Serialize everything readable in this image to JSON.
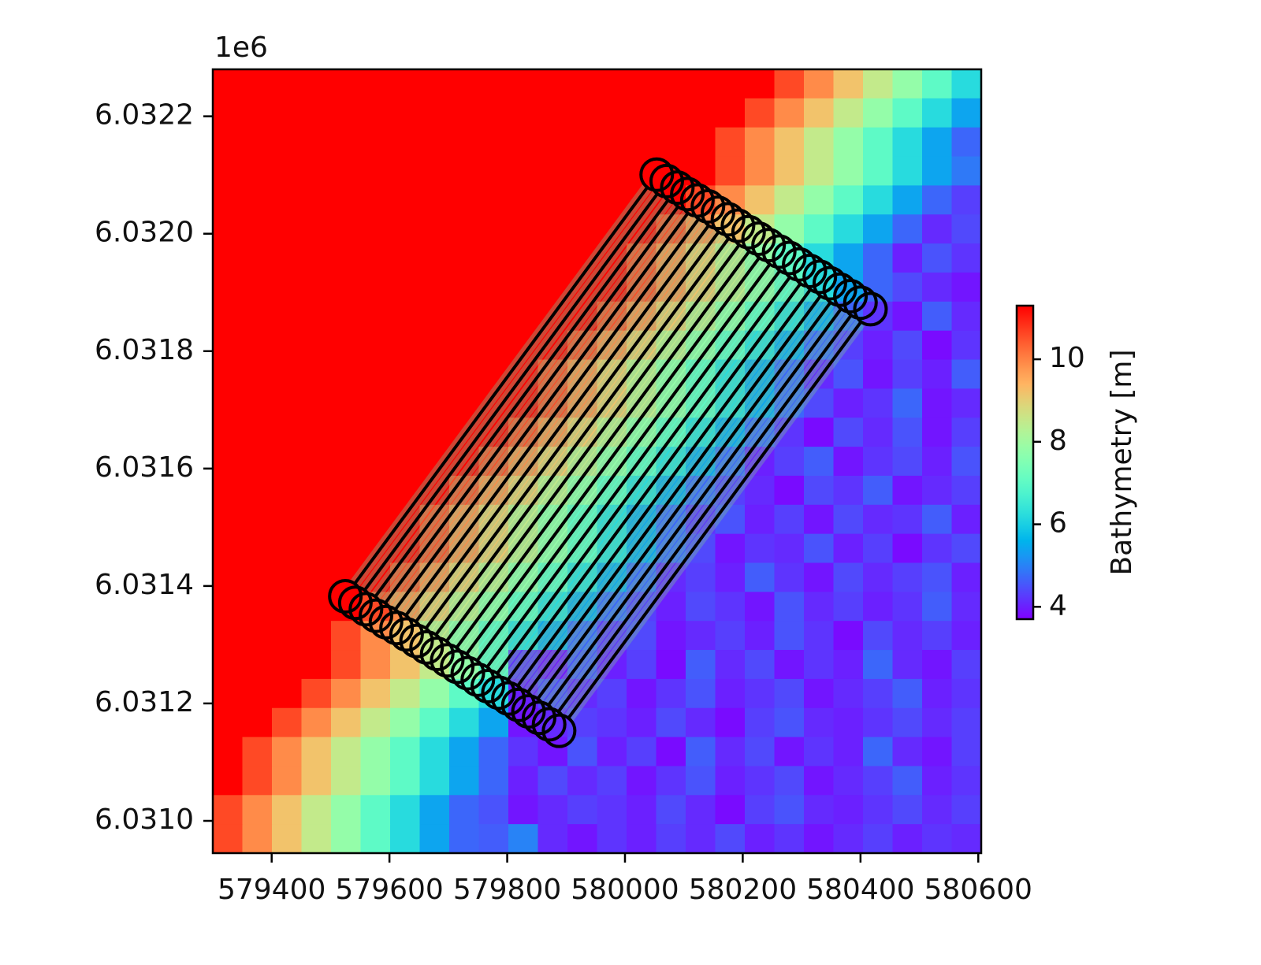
{
  "chart_data": {
    "type": "heatmap",
    "y_offset_label": "1e6",
    "colorbar_label": "Bathymetry [m]",
    "colormap": "rainbow",
    "clim": [
      3.7,
      11.3
    ],
    "cticks": [
      4,
      6,
      8,
      10
    ],
    "xlim": [
      579300,
      580605
    ],
    "ylim": [
      6030945,
      6032280
    ],
    "xticks": [
      579400,
      579600,
      579800,
      580000,
      580200,
      580400,
      580600
    ],
    "yticks": [
      {
        "value": 6031000,
        "label": "6.0310"
      },
      {
        "value": 6031200,
        "label": "6.0312"
      },
      {
        "value": 6031400,
        "label": "6.0314"
      },
      {
        "value": 6031600,
        "label": "6.0316"
      },
      {
        "value": 6031800,
        "label": "6.0318"
      },
      {
        "value": 6032000,
        "label": "6.0320"
      },
      {
        "value": 6032200,
        "label": "6.0322"
      }
    ],
    "z": [
      [
        11.3,
        11.3,
        11.3,
        11.3,
        11.3,
        11.3,
        11.3,
        11.3,
        11.3,
        11.3,
        11.3,
        11.3,
        11.3,
        11.3,
        11.3,
        11.3,
        11.3,
        11.3,
        11.3,
        10.6,
        9.9,
        9.2,
        8.5,
        7.8,
        7.0,
        6.2
      ],
      [
        11.3,
        11.3,
        11.3,
        11.3,
        11.3,
        11.3,
        11.3,
        11.3,
        11.3,
        11.3,
        11.3,
        11.3,
        11.3,
        11.3,
        11.3,
        11.3,
        11.3,
        11.3,
        10.6,
        9.9,
        9.2,
        8.5,
        7.8,
        7.0,
        6.2,
        5.4
      ],
      [
        11.3,
        11.3,
        11.3,
        11.3,
        11.3,
        11.3,
        11.3,
        11.3,
        11.3,
        11.3,
        11.3,
        11.3,
        11.3,
        11.3,
        11.3,
        11.3,
        11.3,
        10.6,
        9.9,
        9.2,
        8.5,
        7.8,
        7.0,
        6.2,
        5.4,
        4.7
      ],
      [
        11.3,
        11.3,
        11.3,
        11.3,
        11.3,
        11.3,
        11.3,
        11.3,
        11.3,
        11.3,
        11.3,
        11.3,
        11.3,
        11.3,
        11.3,
        11.3,
        11.3,
        10.6,
        9.9,
        9.2,
        8.5,
        7.8,
        7.0,
        6.2,
        5.4,
        4.9
      ],
      [
        11.3,
        11.3,
        11.3,
        11.3,
        11.3,
        11.3,
        11.3,
        11.3,
        11.3,
        11.3,
        11.3,
        11.3,
        11.3,
        11.3,
        11.3,
        11.3,
        10.6,
        9.9,
        9.2,
        8.5,
        7.8,
        7.0,
        6.2,
        5.4,
        4.7,
        4.3
      ],
      [
        11.3,
        11.3,
        11.3,
        11.3,
        11.3,
        11.3,
        11.3,
        11.3,
        11.3,
        11.3,
        11.3,
        11.3,
        11.3,
        11.3,
        11.3,
        10.6,
        9.9,
        9.2,
        8.5,
        7.8,
        7.0,
        6.2,
        5.4,
        4.7,
        4.1,
        4.4
      ],
      [
        11.3,
        11.3,
        11.3,
        11.3,
        11.3,
        11.3,
        11.3,
        11.3,
        11.3,
        11.3,
        11.3,
        11.3,
        11.3,
        11.3,
        10.6,
        9.9,
        9.2,
        8.5,
        7.8,
        7.0,
        6.2,
        5.4,
        4.7,
        4.0,
        4.5,
        4.2
      ],
      [
        11.3,
        11.3,
        11.3,
        11.3,
        11.3,
        11.3,
        11.3,
        11.3,
        11.3,
        11.3,
        11.3,
        11.3,
        11.3,
        11.3,
        10.6,
        9.9,
        9.2,
        8.5,
        7.8,
        7.0,
        6.2,
        5.4,
        4.7,
        4.4,
        4.1,
        3.9
      ],
      [
        11.3,
        11.3,
        11.3,
        11.3,
        11.3,
        11.3,
        11.3,
        11.3,
        11.3,
        11.3,
        11.3,
        11.3,
        11.3,
        10.6,
        9.9,
        9.2,
        8.5,
        7.8,
        7.0,
        6.2,
        5.4,
        4.7,
        4.2,
        3.9,
        4.6,
        4.1
      ],
      [
        11.3,
        11.3,
        11.3,
        11.3,
        11.3,
        11.3,
        11.3,
        11.3,
        11.3,
        11.3,
        11.3,
        11.3,
        10.6,
        9.9,
        9.2,
        8.5,
        7.8,
        7.0,
        6.2,
        5.4,
        4.7,
        4.3,
        4.0,
        4.4,
        3.8,
        4.2
      ],
      [
        11.3,
        11.3,
        11.3,
        11.3,
        11.3,
        11.3,
        11.3,
        11.3,
        11.3,
        11.3,
        11.3,
        10.6,
        9.9,
        9.2,
        8.5,
        7.8,
        7.0,
        6.2,
        5.4,
        4.7,
        4.1,
        4.5,
        3.9,
        4.3,
        4.0,
        4.6
      ],
      [
        11.3,
        11.3,
        11.3,
        11.3,
        11.3,
        11.3,
        11.3,
        11.3,
        11.3,
        11.3,
        11.3,
        10.6,
        9.9,
        9.2,
        8.5,
        7.8,
        7.0,
        6.2,
        5.4,
        4.7,
        4.4,
        4.0,
        4.2,
        4.7,
        3.9,
        4.1
      ],
      [
        11.3,
        11.3,
        11.3,
        11.3,
        11.3,
        11.3,
        11.3,
        11.3,
        11.3,
        11.3,
        10.6,
        9.9,
        9.2,
        8.5,
        7.8,
        7.0,
        6.2,
        5.4,
        4.7,
        4.2,
        3.8,
        4.4,
        4.1,
        4.5,
        3.9,
        4.3
      ],
      [
        11.3,
        11.3,
        11.3,
        11.3,
        11.3,
        11.3,
        11.3,
        11.3,
        11.3,
        10.6,
        9.9,
        9.2,
        8.5,
        7.8,
        7.0,
        6.2,
        5.4,
        4.7,
        4.0,
        4.3,
        4.6,
        3.9,
        4.2,
        4.4,
        4.0,
        4.5
      ],
      [
        11.3,
        11.3,
        11.3,
        11.3,
        11.3,
        11.3,
        11.3,
        11.3,
        10.6,
        9.9,
        9.2,
        8.5,
        7.8,
        7.0,
        6.2,
        5.4,
        4.7,
        4.3,
        4.1,
        3.8,
        4.4,
        4.2,
        4.6,
        3.9,
        4.1,
        4.3
      ],
      [
        11.3,
        11.3,
        11.3,
        11.3,
        11.3,
        11.3,
        11.3,
        10.6,
        9.9,
        9.2,
        8.5,
        7.8,
        7.0,
        6.2,
        5.4,
        4.7,
        4.2,
        4.5,
        4.0,
        4.3,
        3.9,
        4.4,
        4.1,
        4.2,
        4.6,
        4.0
      ],
      [
        11.3,
        11.3,
        11.3,
        11.3,
        11.3,
        11.3,
        11.3,
        10.6,
        9.9,
        9.2,
        8.5,
        7.8,
        7.0,
        6.2,
        5.4,
        4.7,
        4.4,
        3.9,
        4.2,
        4.1,
        4.5,
        4.0,
        4.3,
        3.8,
        4.2,
        4.4
      ],
      [
        11.3,
        11.3,
        11.3,
        11.3,
        11.3,
        11.3,
        10.6,
        9.9,
        9.2,
        8.5,
        7.8,
        7.0,
        6.2,
        5.4,
        4.7,
        4.1,
        4.3,
        4.0,
        4.6,
        4.2,
        3.9,
        4.4,
        4.1,
        4.3,
        4.5,
        4.0
      ],
      [
        11.3,
        11.3,
        11.3,
        11.3,
        11.3,
        10.6,
        9.9,
        9.2,
        8.5,
        7.8,
        7.0,
        6.2,
        5.4,
        4.7,
        4.3,
        4.0,
        4.4,
        4.2,
        3.9,
        4.5,
        4.1,
        4.3,
        4.0,
        4.2,
        4.6,
        4.1
      ],
      [
        11.3,
        11.3,
        11.3,
        11.3,
        10.6,
        9.9,
        9.2,
        8.5,
        7.8,
        7.0,
        6.2,
        5.4,
        4.7,
        4.2,
        4.4,
        3.9,
        4.1,
        4.3,
        4.0,
        4.5,
        4.2,
        3.8,
        4.4,
        4.1,
        4.3,
        4.0
      ],
      [
        11.3,
        11.3,
        11.3,
        11.3,
        10.6,
        9.9,
        9.2,
        8.5,
        7.8,
        7.0,
        4.2,
        3.9,
        4.5,
        4.0,
        4.3,
        3.8,
        4.6,
        4.1,
        4.4,
        3.9,
        4.2,
        4.0,
        4.7,
        4.1,
        3.9,
        4.3
      ],
      [
        11.3,
        11.3,
        11.3,
        10.6,
        9.9,
        9.2,
        8.5,
        7.8,
        7.0,
        6.2,
        4.0,
        4.4,
        4.1,
        4.3,
        3.9,
        4.2,
        4.5,
        4.0,
        4.2,
        4.4,
        3.9,
        4.1,
        4.3,
        4.6,
        4.0,
        4.2
      ],
      [
        11.3,
        11.3,
        10.6,
        9.9,
        9.2,
        8.5,
        7.8,
        7.0,
        6.2,
        5.4,
        3.9,
        4.1,
        4.3,
        4.2,
        4.0,
        4.4,
        4.1,
        3.8,
        4.3,
        4.5,
        4.1,
        4.0,
        4.2,
        4.4,
        4.1,
        4.3
      ],
      [
        11.3,
        10.6,
        9.9,
        9.2,
        8.5,
        7.8,
        7.0,
        6.2,
        5.4,
        4.7,
        4.2,
        3.9,
        4.5,
        4.0,
        4.3,
        3.8,
        4.6,
        4.1,
        4.4,
        3.9,
        4.2,
        4.0,
        4.7,
        4.1,
        3.9,
        4.3
      ],
      [
        11.3,
        10.6,
        9.9,
        9.2,
        8.5,
        7.8,
        7.0,
        6.2,
        5.4,
        4.7,
        4.0,
        4.4,
        4.1,
        4.3,
        3.9,
        4.2,
        4.5,
        4.0,
        4.2,
        4.4,
        3.9,
        4.1,
        4.3,
        4.6,
        4.0,
        4.2
      ],
      [
        10.6,
        9.9,
        9.2,
        8.5,
        7.8,
        7.0,
        6.2,
        5.4,
        4.7,
        4.5,
        3.9,
        4.1,
        4.3,
        4.2,
        4.0,
        4.4,
        4.1,
        3.8,
        4.3,
        4.5,
        4.1,
        4.0,
        4.2,
        4.4,
        4.1,
        4.3
      ],
      [
        10.6,
        9.9,
        9.2,
        8.5,
        7.8,
        7.0,
        6.2,
        5.4,
        4.7,
        4.6,
        5.0,
        4.1,
        3.9,
        4.2,
        4.0,
        4.3,
        4.1,
        4.4,
        4.0,
        4.2,
        3.9,
        4.1,
        4.3,
        4.0,
        4.2,
        4.1
      ]
    ],
    "tracks": [
      {
        "x": [
          579541,
          580038
        ],
        "y": [
          6031404,
          6032079
        ]
      },
      {
        "x": [
          579558,
          580055
        ],
        "y": [
          6031393,
          6032068
        ]
      },
      {
        "x": [
          579576,
          580073
        ],
        "y": [
          6031382,
          6032057
        ]
      },
      {
        "x": [
          579593,
          580090
        ],
        "y": [
          6031371,
          6032046
        ]
      },
      {
        "x": [
          579610,
          580107
        ],
        "y": [
          6031360,
          6032035
        ]
      },
      {
        "x": [
          579628,
          580125
        ],
        "y": [
          6031350,
          6032025
        ]
      },
      {
        "x": [
          579645,
          580142
        ],
        "y": [
          6031339,
          6032014
        ]
      },
      {
        "x": [
          579662,
          580159
        ],
        "y": [
          6031328,
          6032003
        ]
      },
      {
        "x": [
          579679,
          580176
        ],
        "y": [
          6031317,
          6031992
        ]
      },
      {
        "x": [
          579697,
          580194
        ],
        "y": [
          6031306,
          6031981
        ]
      },
      {
        "x": [
          579714,
          580211
        ],
        "y": [
          6031295,
          6031970
        ]
      },
      {
        "x": [
          579731,
          580228
        ],
        "y": [
          6031284,
          6031959
        ]
      },
      {
        "x": [
          579749,
          580246
        ],
        "y": [
          6031273,
          6031948
        ]
      },
      {
        "x": [
          579766,
          580263
        ],
        "y": [
          6031262,
          6031937
        ]
      },
      {
        "x": [
          579783,
          580280
        ],
        "y": [
          6031251,
          6031926
        ]
      },
      {
        "x": [
          579801,
          580298
        ],
        "y": [
          6031240,
          6031915
        ]
      },
      {
        "x": [
          579818,
          580315
        ],
        "y": [
          6031230,
          6031905
        ]
      },
      {
        "x": [
          579835,
          580332
        ],
        "y": [
          6031219,
          6031894
        ]
      },
      {
        "x": [
          579852,
          580349
        ],
        "y": [
          6031208,
          6031883
        ]
      },
      {
        "x": [
          579870,
          580367
        ],
        "y": [
          6031197,
          6031872
        ]
      },
      {
        "x": [
          579887,
          580384
        ],
        "y": [
          6031186,
          6031861
        ]
      },
      {
        "x": [
          579904,
          580401
        ],
        "y": [
          6031175,
          6031850
        ]
      }
    ],
    "track_color": "#000000"
  }
}
